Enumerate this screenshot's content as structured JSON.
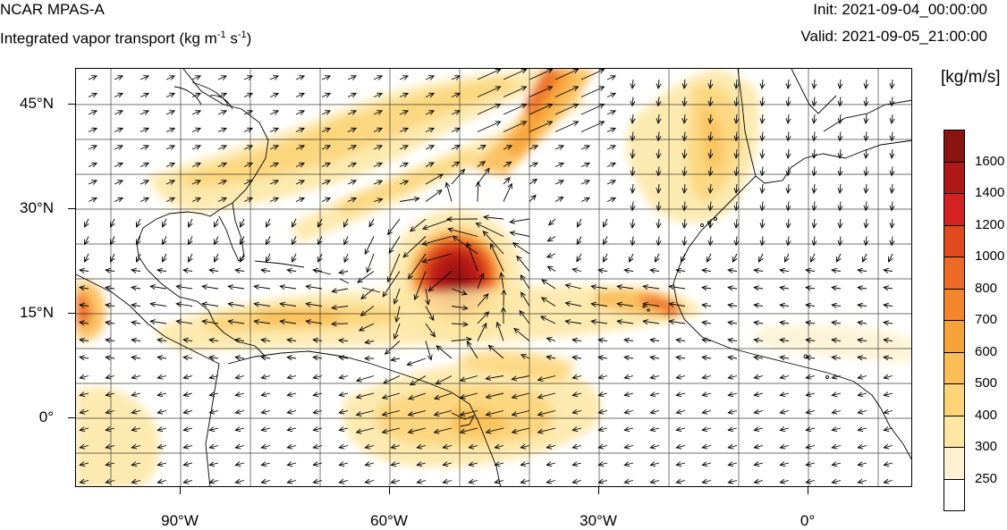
{
  "header": {
    "model": "NCAR MPAS-A",
    "field_prefix": "Integrated vapor transport (kg m",
    "field_exp1": "-1",
    "field_mid": " s",
    "field_exp2": "-1",
    "field_suffix": ")",
    "init": "Init: 2021-09-04_00:00:00",
    "valid": "Valid: 2021-09-05_21:00:00"
  },
  "axes": {
    "lat_labels": [
      "45°N",
      "30°N",
      "15°N",
      "0°"
    ],
    "lon_labels": [
      "90°W",
      "60°W",
      "30°W",
      "0°"
    ]
  },
  "colorbar": {
    "unit": "[kg/m/s]",
    "labels": [
      "1600",
      "1400",
      "1200",
      "1000",
      "800",
      "700",
      "600",
      "500",
      "400",
      "300",
      "250"
    ],
    "colors": [
      "#8b1410",
      "#b01818",
      "#d42222",
      "#e14a1e",
      "#ec6a24",
      "#f3862a",
      "#f7a33a",
      "#fbbd55",
      "#fdd478",
      "#fde6a2",
      "#fdf3d4",
      "#ffffff"
    ]
  }
}
